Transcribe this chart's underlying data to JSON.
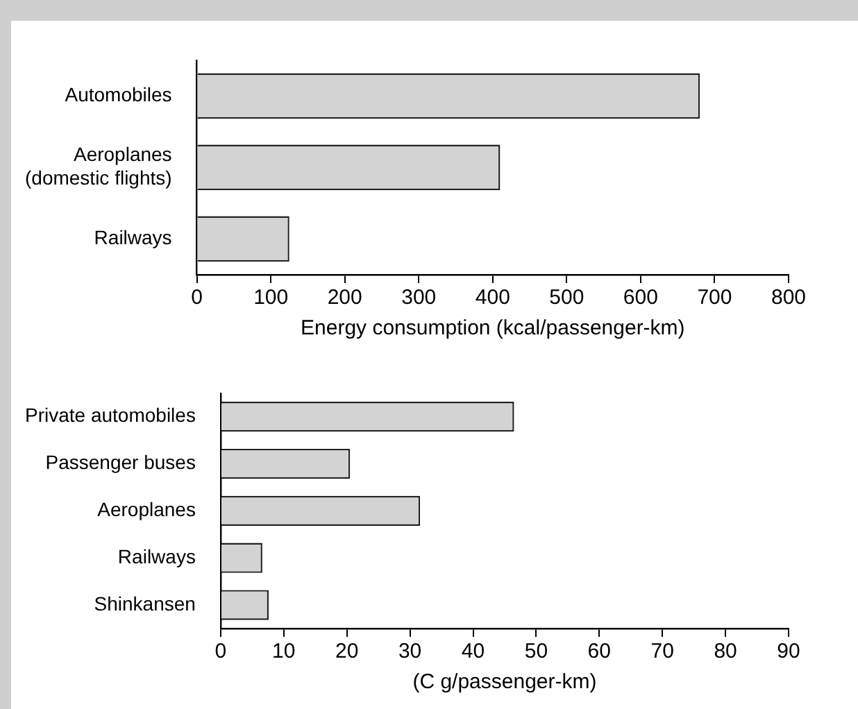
{
  "chart_data": [
    {
      "type": "bar",
      "orientation": "horizontal",
      "categories": [
        "Automobiles",
        "Aeroplanes (domestic flights)",
        "Railways"
      ],
      "values": [
        680,
        410,
        125
      ],
      "color": "#d3d3d3",
      "xlabel": "Energy consumption (kcal/passenger-km)",
      "xlim": [
        0,
        800
      ],
      "xticks": [
        0,
        100,
        200,
        300,
        400,
        500,
        600,
        700,
        800
      ],
      "grid": false,
      "legend": false
    },
    {
      "type": "bar",
      "orientation": "horizontal",
      "categories": [
        "Private automobiles",
        "Passenger buses",
        "Aeroplanes",
        "Railways",
        "Shinkansen"
      ],
      "values": [
        46.5,
        20.5,
        31.6,
        6.6,
        7.6
      ],
      "color": "#d3d3d3",
      "xlabel": "(C g/passenger-km)",
      "xlim": [
        0,
        90
      ],
      "xticks": [
        0,
        10,
        20,
        30,
        40,
        50,
        60,
        70,
        80,
        90
      ],
      "grid": false,
      "legend": false
    }
  ]
}
